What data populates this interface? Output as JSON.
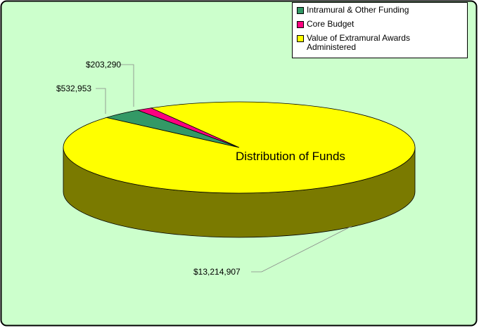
{
  "chart_data": {
    "type": "pie",
    "title": "Distribution of Funds",
    "categories": [
      "Intramural & Other Funding",
      "Core Budget",
      "Value of Extramural  Awards Administered"
    ],
    "values": [
      532953,
      203290,
      13214907
    ],
    "value_labels": [
      "$532,953",
      "$203,290",
      "$13,214,907"
    ],
    "colors": [
      "#339966",
      "#ff0080",
      "#ffff00"
    ]
  }
}
